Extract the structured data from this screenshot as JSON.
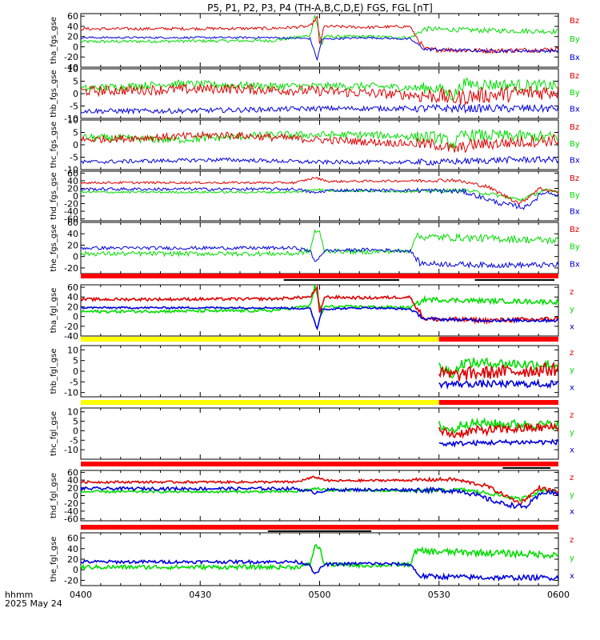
{
  "title": "P5, P1, P2, P3, P4 (TH-A,B,C,D,E) FGS, FGL [nT]",
  "footer": {
    "time_label": "hhmm",
    "date_label": "2025 May 24"
  },
  "colors": {
    "x": "#0000dd",
    "y": "#00dd00",
    "z": "#dd0000",
    "bar_red": "#ff0000",
    "bar_yellow": "#ffff00",
    "bar_black": "#000000",
    "frame": "#000000"
  },
  "chart_data": {
    "type": "line",
    "x_ticks": [
      "0400",
      "0430",
      "0500",
      "0530",
      "0600"
    ],
    "x_range": [
      "0400",
      "0600"
    ],
    "panels": [
      {
        "id": "tha_fgs",
        "ylabel": "tha_fgs_gse",
        "ylim": [
          -40,
          65
        ],
        "yticks": [
          "60",
          "40",
          "20",
          "0",
          "-20",
          "-40"
        ],
        "yticks_val": [
          60,
          40,
          20,
          0,
          -20,
          -40
        ],
        "legend": [
          "Bz",
          "By",
          "Bx"
        ],
        "profile": "a"
      },
      {
        "id": "thb_fgs",
        "ylabel": "thb_fgs_gse",
        "ylim": [
          -10,
          10
        ],
        "yticks": [
          "10",
          "5",
          "0",
          "-5",
          "-10"
        ],
        "yticks_val": [
          10,
          5,
          0,
          -5,
          -10
        ],
        "legend": [
          "Bz",
          "By",
          "Bx"
        ],
        "profile": "b"
      },
      {
        "id": "thc_fgs",
        "ylabel": "thc_fgs_gse",
        "ylim": [
          -10,
          10
        ],
        "yticks": [
          "10",
          "5",
          "0",
          "-5",
          "-10"
        ],
        "yticks_val": [
          10,
          5,
          0,
          -5,
          -10
        ],
        "legend": [
          "Bz",
          "By",
          "Bx"
        ],
        "profile": "c"
      },
      {
        "id": "thd_fgs",
        "ylabel": "thd_fgs_gse",
        "ylim": [
          -65,
          65
        ],
        "yticks": [
          "60",
          "40",
          "20",
          "0",
          "-20",
          "-40",
          "-60"
        ],
        "yticks_val": [
          60,
          40,
          20,
          0,
          -20,
          -40,
          -60
        ],
        "legend": [
          "Bz",
          "By",
          "Bx"
        ],
        "profile": "d"
      },
      {
        "id": "the_fgs",
        "ylabel": "the_fgs_gse",
        "ylim": [
          -30,
          60
        ],
        "yticks": [
          "60",
          "40",
          "20",
          "0",
          "-20"
        ],
        "yticks_val": [
          60,
          40,
          20,
          0,
          -20
        ],
        "legend": [
          "Bz",
          "By",
          "Bx"
        ],
        "profile": "e"
      },
      {
        "id": "tha_fgl",
        "ylabel": "tha_fgl_gse",
        "ylim": [
          -40,
          65
        ],
        "yticks": [
          "60",
          "40",
          "20",
          "0",
          "-20",
          "-40"
        ],
        "yticks_val": [
          60,
          40,
          20,
          0,
          -20,
          -40
        ],
        "legend": [
          "z",
          "y",
          "x"
        ],
        "profile": "a",
        "thick": true
      },
      {
        "id": "thb_fgl",
        "ylabel": "thb_fgl_gse",
        "ylim": [
          -12,
          12
        ],
        "yticks": [
          "10",
          "5",
          "0",
          "-5",
          "-10"
        ],
        "yticks_val": [
          10,
          5,
          0,
          -5,
          -10
        ],
        "legend": [
          "z",
          "y",
          "x"
        ],
        "profile": "b",
        "thick": true,
        "start_fraction": 0.75
      },
      {
        "id": "thc_fgl",
        "ylabel": "thc_fgl_gse",
        "ylim": [
          -15,
          12
        ],
        "yticks": [
          "10",
          "5",
          "0",
          "-5",
          "-10"
        ],
        "yticks_val": [
          10,
          5,
          0,
          -5,
          -10
        ],
        "legend": [
          "z",
          "y",
          "x"
        ],
        "profile": "c",
        "thick": true,
        "start_fraction": 0.75
      },
      {
        "id": "thd_fgl",
        "ylabel": "thd_fgl_gse",
        "ylim": [
          -65,
          65
        ],
        "yticks": [
          "60",
          "40",
          "20",
          "0",
          "-20",
          "-40",
          "-60"
        ],
        "yticks_val": [
          60,
          40,
          20,
          0,
          -20,
          -40,
          -60
        ],
        "legend": [
          "z",
          "y",
          "x"
        ],
        "profile": "d",
        "thick": true
      },
      {
        "id": "the_fgl",
        "ylabel": "the_fgl_gse",
        "ylim": [
          -30,
          70
        ],
        "yticks": [
          "60",
          "40",
          "20",
          "0",
          "-20"
        ],
        "yticks_val": [
          60,
          40,
          20,
          0,
          -20
        ],
        "legend": [
          "z",
          "y",
          "x"
        ],
        "profile": "e",
        "thick": true
      }
    ],
    "status_bars": [
      {
        "after_panel": 4,
        "color": "red",
        "black_segments": [
          [
            "0451",
            "0520"
          ],
          [
            "0539",
            "0559"
          ]
        ]
      },
      {
        "after_panel": 5,
        "color": "yellow_red",
        "switch": "0530",
        "black_segments": []
      },
      {
        "after_panel": 6,
        "color": "yellow_red",
        "switch": "0530",
        "black_segments": []
      },
      {
        "after_panel": 7,
        "color": "red",
        "black_segments": [
          [
            "0546",
            "0558"
          ]
        ]
      },
      {
        "after_panel": 8,
        "color": "red",
        "black_segments": [
          [
            "0447",
            "0513"
          ]
        ]
      }
    ]
  }
}
